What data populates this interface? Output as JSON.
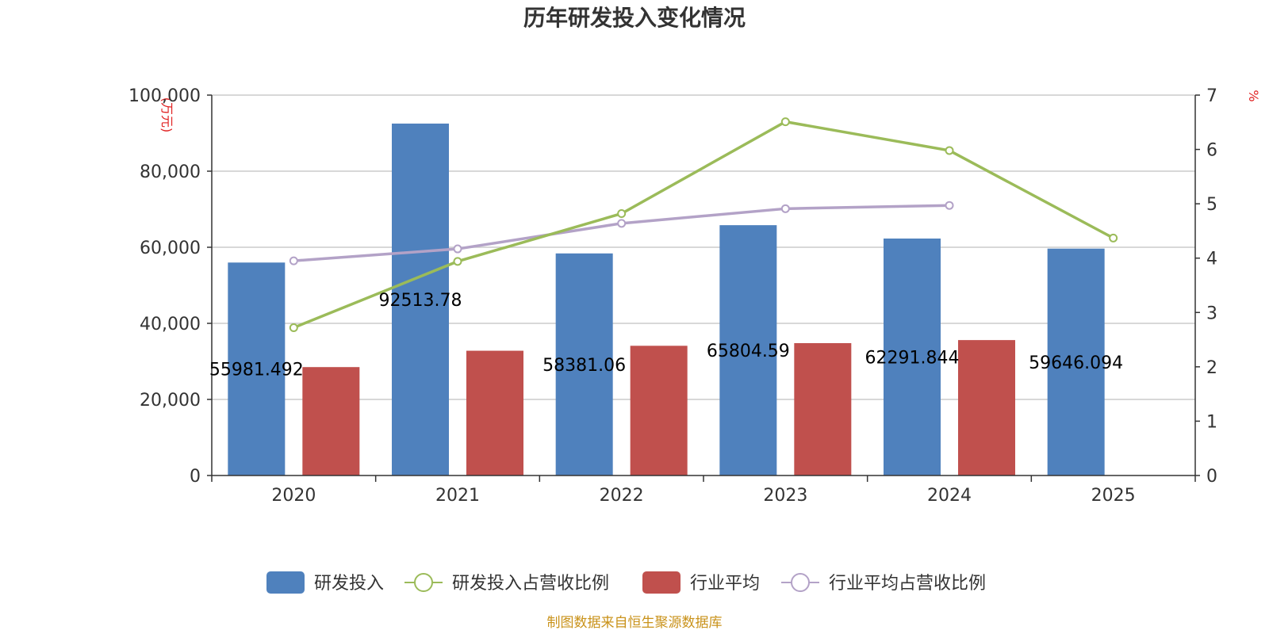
{
  "chart_data": {
    "type": "bar",
    "title": "历年研发投入变化情况",
    "categories": [
      "2020",
      "2021",
      "2022",
      "2023",
      "2024",
      "2025"
    ],
    "y_left": {
      "unit": "(万元)",
      "ylim": [
        0,
        100000
      ],
      "ticks": [
        "0",
        "20,000",
        "40,000",
        "60,000",
        "80,000",
        "100,000"
      ],
      "tick_values": [
        0,
        20000,
        40000,
        60000,
        80000,
        100000
      ]
    },
    "y_right": {
      "unit": "%",
      "ylim": [
        0,
        7
      ],
      "ticks": [
        "0",
        "1",
        "2",
        "3",
        "4",
        "5",
        "6",
        "7"
      ],
      "tick_values": [
        0,
        1,
        2,
        3,
        4,
        5,
        6,
        7
      ]
    },
    "series": [
      {
        "name": "研发投入",
        "kind": "bar",
        "axis": "left",
        "color": "#4f81bd",
        "values": [
          55981.492,
          92513.78,
          58381.06,
          65804.59,
          62291.844,
          59646.094
        ],
        "labels": [
          "55981.492",
          "92513.78",
          "58381.06",
          "65804.59",
          "62291.844",
          "59646.094"
        ]
      },
      {
        "name": "研发投入占营收比例",
        "kind": "line",
        "axis": "right",
        "color": "#9bbb59",
        "values": [
          2.72,
          3.94,
          4.82,
          6.51,
          5.98,
          4.37
        ]
      },
      {
        "name": "行业平均",
        "kind": "bar",
        "axis": "left",
        "color": "#c0504d",
        "values": [
          28500,
          32800,
          34100,
          34800,
          35600,
          null
        ]
      },
      {
        "name": "行业平均占营收比例",
        "kind": "line",
        "axis": "right",
        "color": "#b3a2c7",
        "values": [
          3.95,
          4.17,
          4.64,
          4.91,
          4.97,
          null
        ]
      }
    ],
    "grid": true,
    "legend_position": "bottom"
  },
  "source": "制图数据来自恒生聚源数据库"
}
